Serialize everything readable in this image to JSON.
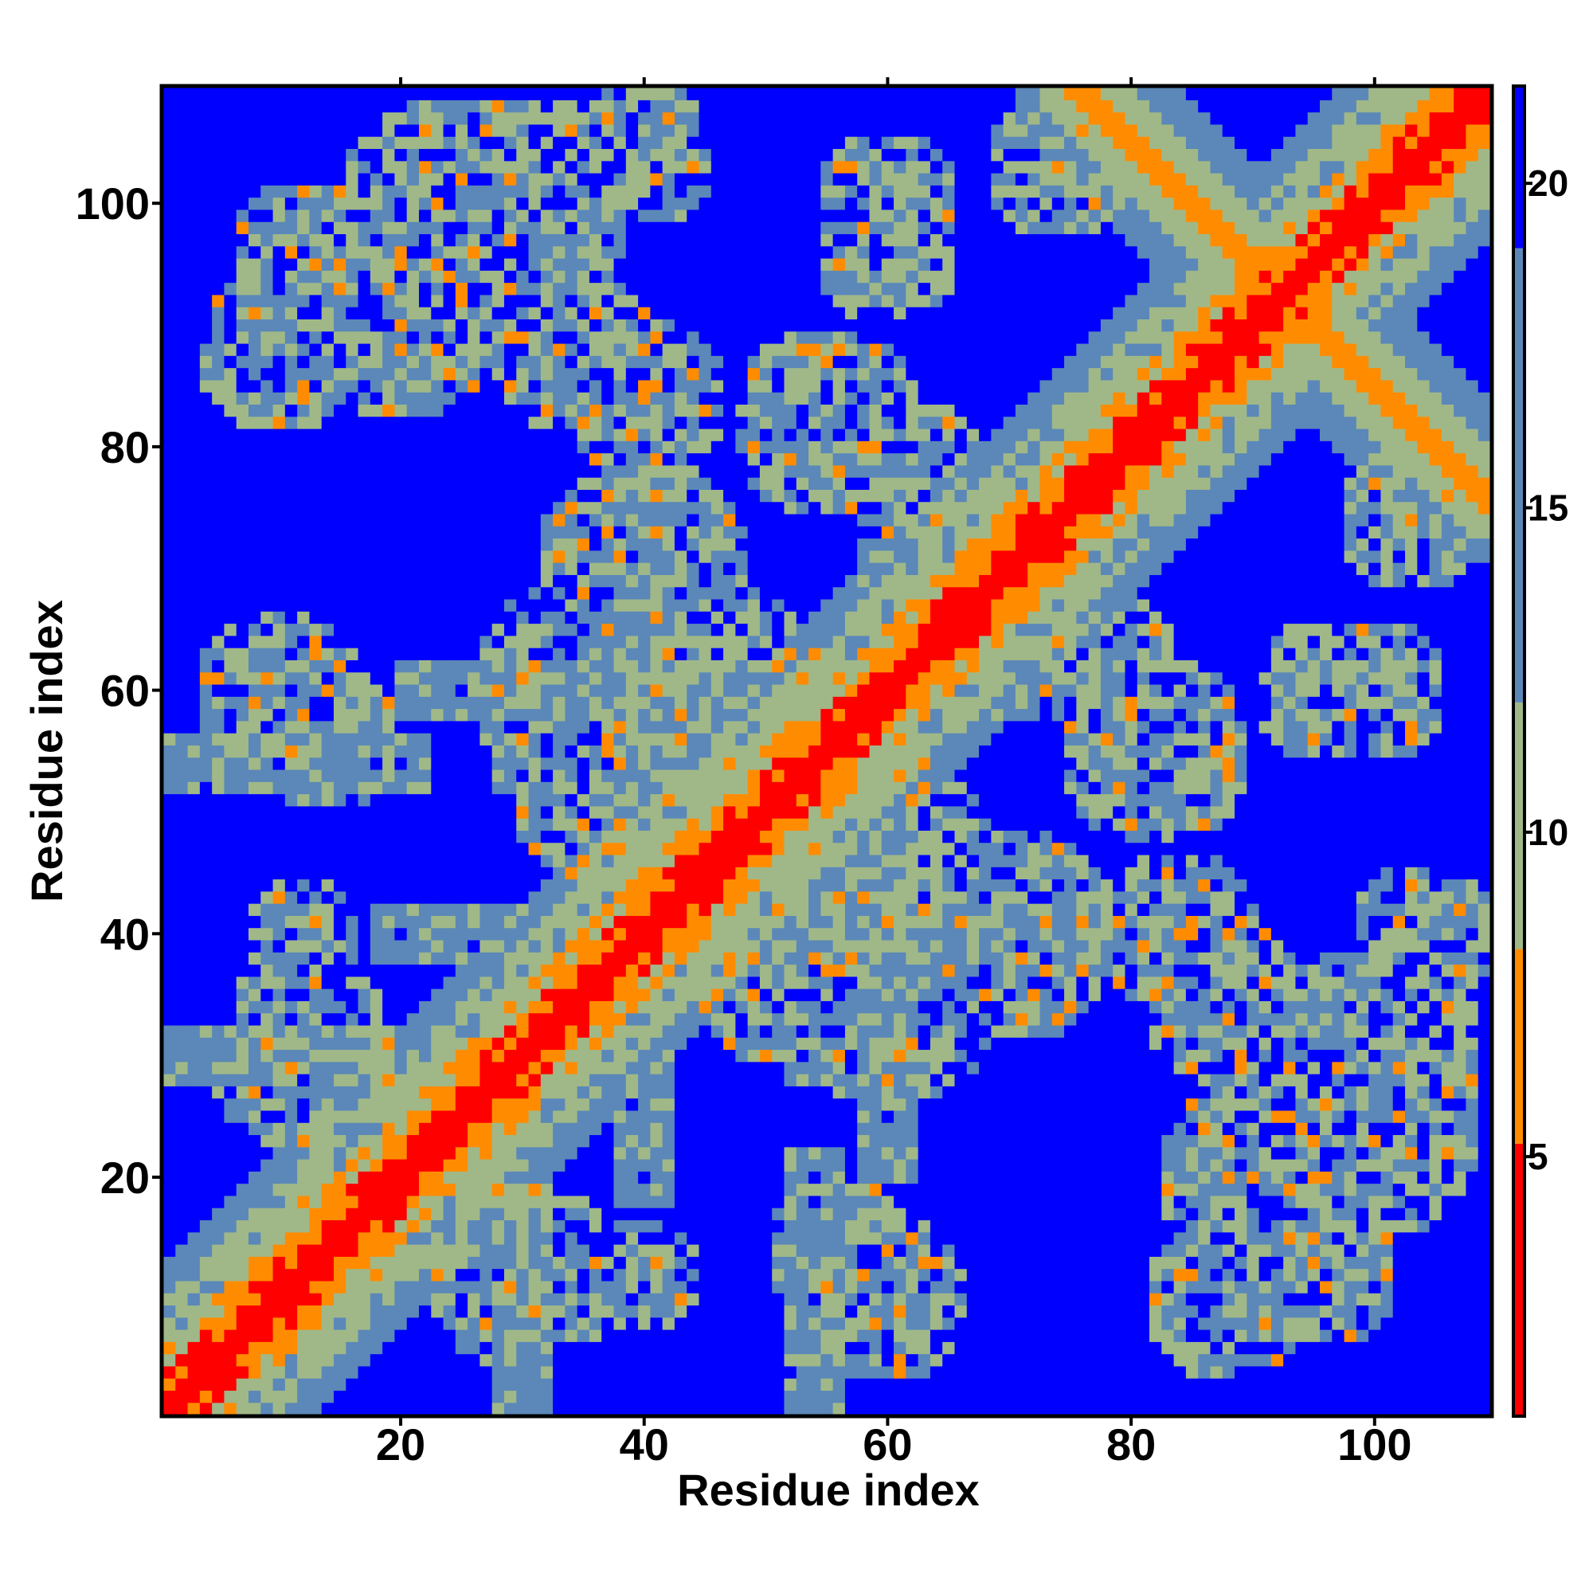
{
  "chart_data": {
    "type": "heatmap",
    "title": "",
    "xlabel": "Residue index",
    "ylabel": "Residue index",
    "n_residues": 109,
    "xlim": [
      1,
      109
    ],
    "ylim": [
      1,
      109
    ],
    "x_ticks": [
      20,
      40,
      60,
      80,
      100
    ],
    "y_ticks": [
      20,
      40,
      60,
      80,
      100
    ],
    "colorbar": {
      "ticks": [
        5,
        10,
        15,
        20
      ],
      "range": [
        1,
        21.5
      ],
      "bands": [
        {
          "from": 1,
          "to": 5.2,
          "color": "#ff0000"
        },
        {
          "from": 5.2,
          "to": 8.2,
          "color": "#ff8c00"
        },
        {
          "from": 8.2,
          "to": 12,
          "color": "#a0b888"
        },
        {
          "from": 12,
          "to": 19,
          "color": "#5b88b8"
        },
        {
          "from": 19,
          "to": 21.5,
          "color": "#0000ff"
        }
      ]
    },
    "contact_features": {
      "main_diagonal": {
        "from": [
          1,
          1
        ],
        "to": [
          109,
          109
        ],
        "description": "sequential neighbours"
      },
      "antiparallel_bands": [
        {
          "from": [
            76,
            109
          ],
          "to": [
            89,
            96
          ],
          "color_level": "orange"
        },
        {
          "from": [
            89,
            96
          ],
          "to": [
            109,
            76
          ],
          "color_level": "orange"
        }
      ],
      "clusters": [
        {
          "x": 24,
          "y": 100,
          "level": "mixed"
        },
        {
          "x": 50,
          "y": 50,
          "level": "orange"
        },
        {
          "x": 55,
          "y": 3,
          "level": "orange"
        },
        {
          "x": 3,
          "y": 55,
          "level": "orange"
        }
      ]
    },
    "grid": false,
    "legend": "colorbar right"
  }
}
